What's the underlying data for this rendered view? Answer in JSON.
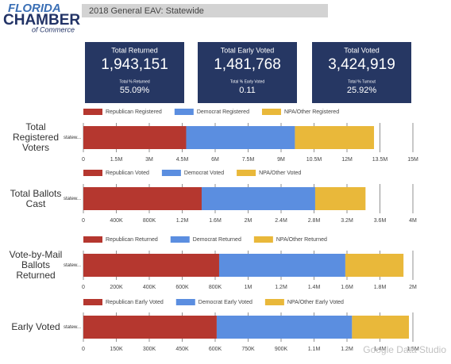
{
  "logo": {
    "line1": "FLORIDA",
    "line2": "CHAMBER",
    "line3": "of Commerce"
  },
  "header": {
    "title": "2018 General EAV: Statewide"
  },
  "kpis": [
    {
      "label": "Total Returned",
      "value": "1,943,151",
      "sub_label": "Total % Returned",
      "sub_value": "55.09%"
    },
    {
      "label": "Total Early Voted",
      "value": "1,481,768",
      "sub_label": "Total % Early Voted",
      "sub_value": "0.11"
    },
    {
      "label": "Total Voted",
      "value": "3,424,919",
      "sub_label": "Total % Turnout",
      "sub_value": "25.92%"
    }
  ],
  "chart_data": [
    {
      "type": "bar",
      "orientation": "horizontal",
      "stacked": true,
      "title": "Total Registered Voters",
      "categories": [
        "statew..."
      ],
      "series": [
        {
          "name": "Republican Registered",
          "color": "#b5372f",
          "values": [
            4680000
          ]
        },
        {
          "name": "Democrat Registered",
          "color": "#5b8ee0",
          "values": [
            4950000
          ]
        },
        {
          "name": "NPA/Other Registered",
          "color": "#e9b83a",
          "values": [
            3600000
          ]
        }
      ],
      "xlim": [
        0,
        15000000
      ],
      "xticks": [
        0,
        {
          "value": 1500000,
          "label": "1.5M"
        },
        {
          "value": 3000000,
          "label": "3M"
        },
        {
          "value": 4500000,
          "label": "4.5M"
        },
        {
          "value": 6000000,
          "label": "6M"
        },
        {
          "value": 7500000,
          "label": "7.5M"
        },
        {
          "value": 9000000,
          "label": "9M"
        },
        {
          "value": 10500000,
          "label": "10.5M"
        },
        {
          "value": 12000000,
          "label": "12M"
        },
        {
          "value": 13500000,
          "label": "13.5M"
        },
        {
          "value": 15000000,
          "label": "15M"
        }
      ],
      "grid": true
    },
    {
      "type": "bar",
      "orientation": "horizontal",
      "stacked": true,
      "title": "Total Ballots Cast",
      "categories": [
        "statew..."
      ],
      "series": [
        {
          "name": "Republican Voted",
          "color": "#b5372f",
          "values": [
            1436000
          ]
        },
        {
          "name": "Democrat Voted",
          "color": "#5b8ee0",
          "values": [
            1378000
          ]
        },
        {
          "name": "NPA/Other Voted",
          "color": "#e9b83a",
          "values": [
            611000
          ]
        }
      ],
      "xlim": [
        0,
        4000000
      ],
      "xticks": [
        0,
        {
          "value": 400000,
          "label": "400K"
        },
        {
          "value": 800000,
          "label": "800K"
        },
        {
          "value": 1200000,
          "label": "1.2M"
        },
        {
          "value": 1600000,
          "label": "1.6M"
        },
        {
          "value": 2000000,
          "label": "2M"
        },
        {
          "value": 2400000,
          "label": "2.4M"
        },
        {
          "value": 2800000,
          "label": "2.8M"
        },
        {
          "value": 3200000,
          "label": "3.2M"
        },
        {
          "value": 3600000,
          "label": "3.6M"
        },
        {
          "value": 4000000,
          "label": "4M"
        }
      ],
      "grid": true
    },
    {
      "type": "bar",
      "orientation": "horizontal",
      "stacked": true,
      "title": "Vote-by-Mail Ballots Returned",
      "categories": [
        "statew..."
      ],
      "series": [
        {
          "name": "Republican Returned",
          "color": "#b5372f",
          "values": [
            824000
          ]
        },
        {
          "name": "Democrat Returned",
          "color": "#5b8ee0",
          "values": [
            766000
          ]
        },
        {
          "name": "NPA/Other Returned",
          "color": "#e9b83a",
          "values": [
            353000
          ]
        }
      ],
      "xlim": [
        0,
        2000000
      ],
      "xticks": [
        0,
        {
          "value": 200000,
          "label": "200K"
        },
        {
          "value": 400000,
          "label": "400K"
        },
        {
          "value": 600000,
          "label": "600K"
        },
        {
          "value": 800000,
          "label": "800K"
        },
        {
          "value": 1000000,
          "label": "1M"
        },
        {
          "value": 1200000,
          "label": "1.2M"
        },
        {
          "value": 1400000,
          "label": "1.4M"
        },
        {
          "value": 1600000,
          "label": "1.6M"
        },
        {
          "value": 1800000,
          "label": "1.8M"
        },
        {
          "value": 2000000,
          "label": "2M"
        }
      ],
      "grid": true
    },
    {
      "type": "bar",
      "orientation": "horizontal",
      "stacked": true,
      "title": "Early Voted",
      "categories": [
        "statew..."
      ],
      "series": [
        {
          "name": "Republican Early Voted",
          "color": "#b5372f",
          "values": [
            607000
          ]
        },
        {
          "name": "Democrat Early Voted",
          "color": "#5b8ee0",
          "values": [
            616000
          ]
        },
        {
          "name": "NPA/Other Early Voted",
          "color": "#e9b83a",
          "values": [
            259000
          ]
        }
      ],
      "xlim": [
        0,
        1500000
      ],
      "xticks": [
        0,
        {
          "value": 150000,
          "label": "150K"
        },
        {
          "value": 300000,
          "label": "300K"
        },
        {
          "value": 450000,
          "label": "450K"
        },
        {
          "value": 600000,
          "label": "600K"
        },
        {
          "value": 750000,
          "label": "750K"
        },
        {
          "value": 900000,
          "label": "900K"
        },
        {
          "value": 1050000,
          "label": "1.1M"
        },
        {
          "value": 1200000,
          "label": "1.2M"
        },
        {
          "value": 1350000,
          "label": "1.4M"
        },
        {
          "value": 1500000,
          "label": "1.5M"
        }
      ],
      "grid": true
    }
  ],
  "watermark": "Google Data Studio"
}
